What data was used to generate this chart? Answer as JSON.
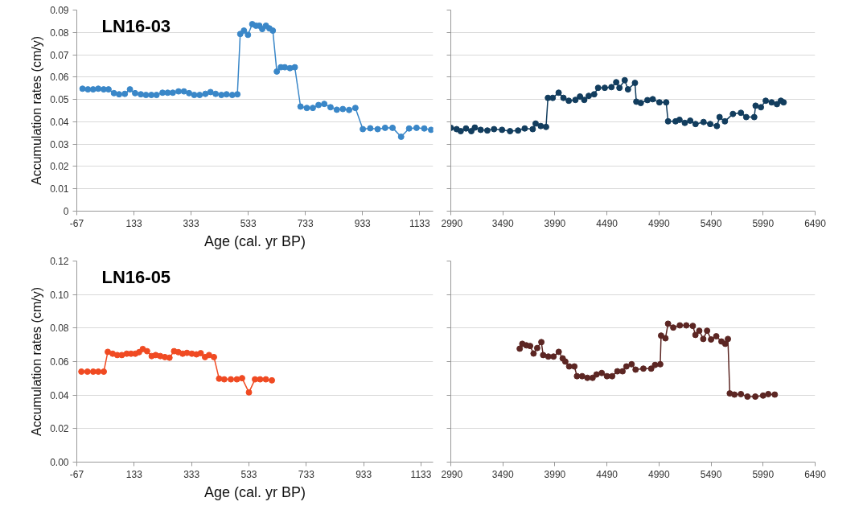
{
  "chart_data": [
    {
      "type": "line",
      "title": "LN16-03",
      "xlabel": "Age (cal. yr BP)",
      "ylabel": "Accumulation rates (cm/y)",
      "xlim": [
        -67,
        1180
      ],
      "xticks": [
        -67,
        133,
        333,
        533,
        733,
        933,
        1133
      ],
      "ylim": [
        0,
        0.09
      ],
      "yticks": [
        0,
        0.01,
        0.02,
        0.03,
        0.04,
        0.05,
        0.06,
        0.07,
        0.08,
        0.09
      ],
      "grid": "y",
      "marker": "circle",
      "line_style": "solid",
      "series": [
        {
          "color": "#3a87c8",
          "x": [
            -47,
            -28,
            -10,
            8,
            27,
            44,
            63,
            81,
            101,
            119,
            137,
            157,
            175,
            194,
            212,
            233,
            251,
            269,
            289,
            308,
            326,
            344,
            363,
            383,
            401,
            419,
            439,
            457,
            477,
            495,
            505,
            518,
            532,
            547,
            560,
            572,
            582,
            595,
            607,
            619,
            633,
            647,
            661,
            679,
            696,
            716,
            738,
            759,
            779,
            799,
            821,
            843,
            864,
            886,
            908,
            934,
            960,
            986,
            1012,
            1038,
            1068,
            1096,
            1122,
            1149,
            1173
          ],
          "values": [
            0.0548,
            0.0545,
            0.0545,
            0.0548,
            0.0545,
            0.0545,
            0.0528,
            0.0523,
            0.0525,
            0.0545,
            0.0528,
            0.0523,
            0.052,
            0.052,
            0.052,
            0.053,
            0.053,
            0.053,
            0.0536,
            0.0536,
            0.0528,
            0.052,
            0.052,
            0.0525,
            0.0533,
            0.0525,
            0.052,
            0.0523,
            0.052,
            0.0523,
            0.0793,
            0.0808,
            0.0789,
            0.0837,
            0.083,
            0.083,
            0.0815,
            0.083,
            0.0818,
            0.0808,
            0.0625,
            0.0644,
            0.0644,
            0.064,
            0.0644,
            0.0468,
            0.0462,
            0.0462,
            0.0475,
            0.048,
            0.0465,
            0.0454,
            0.0457,
            0.0453,
            0.0462,
            0.0367,
            0.0371,
            0.0367,
            0.0373,
            0.0373,
            0.0333,
            0.037,
            0.0373,
            0.037,
            0.0364
          ]
        }
      ]
    },
    {
      "type": "line",
      "xlim": [
        2990,
        6490
      ],
      "xticks": [
        2990,
        3490,
        3990,
        4490,
        4990,
        5490,
        5990,
        6490
      ],
      "ylim": [
        0,
        0.09
      ],
      "yticks": [
        0,
        0.01,
        0.02,
        0.03,
        0.04,
        0.05,
        0.06,
        0.07,
        0.08,
        0.09
      ],
      "tick_labels": "x",
      "grid": "y",
      "marker": "circle",
      "line_style": "solid",
      "series": [
        {
          "color": "#123d5e",
          "x": [
            2990,
            3046,
            3085,
            3136,
            3187,
            3221,
            3277,
            3341,
            3405,
            3482,
            3559,
            3636,
            3700,
            3777,
            3805,
            3854,
            3905,
            3923,
            3969,
            4026,
            4072,
            4123,
            4187,
            4231,
            4272,
            4315,
            4367,
            4405,
            4469,
            4533,
            4579,
            4610,
            4661,
            4692,
            4759,
            4772,
            4815,
            4879,
            4930,
            4994,
            5059,
            5077,
            5149,
            5187,
            5238,
            5290,
            5341,
            5418,
            5482,
            5546,
            5572,
            5623,
            5700,
            5777,
            5828,
            5905,
            5918,
            5969,
            6015,
            6072,
            6123,
            6161,
            6187
          ],
          "values": [
            0.0373,
            0.0367,
            0.0358,
            0.037,
            0.0358,
            0.0374,
            0.0364,
            0.0361,
            0.0367,
            0.0364,
            0.0358,
            0.0361,
            0.037,
            0.0367,
            0.0392,
            0.0381,
            0.0377,
            0.0507,
            0.0507,
            0.053,
            0.0507,
            0.0494,
            0.0498,
            0.0513,
            0.0498,
            0.0516,
            0.0523,
            0.0552,
            0.0552,
            0.0555,
            0.0577,
            0.0552,
            0.0586,
            0.0545,
            0.0574,
            0.049,
            0.0484,
            0.0497,
            0.0501,
            0.0487,
            0.0487,
            0.0402,
            0.0402,
            0.0409,
            0.0395,
            0.0405,
            0.039,
            0.0399,
            0.039,
            0.0381,
            0.0421,
            0.0402,
            0.0435,
            0.044,
            0.0421,
            0.0421,
            0.0472,
            0.0465,
            0.0494,
            0.0487,
            0.0479,
            0.0494,
            0.0487
          ]
        }
      ]
    },
    {
      "type": "line",
      "title": "LN16-05",
      "xlabel": "Age (cal. yr BP)",
      "ylabel": "Accumulation rates (cm/y)",
      "xlim": [
        -67,
        1175
      ],
      "xticks": [
        -67,
        133,
        333,
        533,
        733,
        933,
        1133
      ],
      "ylim": [
        0,
        0.12
      ],
      "yticks": [
        {
          "value": 0,
          "label": "0.00"
        },
        {
          "value": 0.02,
          "label": "0.02"
        },
        {
          "value": 0.04,
          "label": "0.04"
        },
        {
          "value": 0.06,
          "label": "0.06"
        },
        {
          "value": 0.08,
          "label": "0.08"
        },
        {
          "value": 0.1,
          "label": "0.10"
        },
        {
          "value": 0.12,
          "label": "0.12"
        }
      ],
      "grid": "y",
      "marker": "circle",
      "line_style": "solid",
      "series": [
        {
          "color": "#f04a22",
          "x": [
            -51,
            -30,
            -10,
            8,
            27,
            41,
            58,
            74,
            90,
            107,
            122,
            137,
            150,
            163,
            178,
            194,
            208,
            224,
            240,
            256,
            272,
            287,
            302,
            317,
            334,
            350,
            365,
            380,
            394,
            411,
            429,
            447,
            470,
            491,
            509,
            533,
            554,
            572,
            592,
            613
          ],
          "values": [
            0.054,
            0.054,
            0.054,
            0.054,
            0.054,
            0.0658,
            0.0647,
            0.0639,
            0.0639,
            0.0647,
            0.0647,
            0.0647,
            0.0656,
            0.0675,
            0.0662,
            0.0633,
            0.0639,
            0.0633,
            0.0627,
            0.0623,
            0.0662,
            0.0656,
            0.0647,
            0.0652,
            0.0647,
            0.0643,
            0.065,
            0.0627,
            0.0639,
            0.0627,
            0.0498,
            0.0494,
            0.0494,
            0.0494,
            0.0501,
            0.0416,
            0.0494,
            0.0494,
            0.0494,
            0.0488
          ]
        }
      ]
    },
    {
      "type": "line",
      "xlim": [
        2990,
        6490
      ],
      "xticks": [
        2990,
        3490,
        3990,
        4490,
        4990,
        5490,
        5990,
        6490
      ],
      "ylim": [
        0,
        0.12
      ],
      "yticks": [
        0,
        0.02,
        0.04,
        0.06,
        0.08,
        0.1,
        0.12
      ],
      "tick_labels": "x",
      "grid": "y",
      "marker": "circle",
      "line_style": "solid",
      "series": [
        {
          "color": "#5c2623",
          "x": [
            3652,
            3677,
            3715,
            3752,
            3785,
            3820,
            3860,
            3877,
            3927,
            3977,
            4027,
            4065,
            4090,
            4127,
            4177,
            4202,
            4252,
            4302,
            4352,
            4390,
            4440,
            4490,
            4540,
            4590,
            4640,
            4677,
            4727,
            4765,
            4840,
            4915,
            4952,
            5002,
            5010,
            5052,
            5077,
            5127,
            5190,
            5252,
            5315,
            5340,
            5377,
            5415,
            5452,
            5490,
            5540,
            5590,
            5627,
            5652,
            5670,
            5715,
            5777,
            5840,
            5915,
            5990,
            6040,
            6102
          ],
          "values": [
            0.0677,
            0.0706,
            0.0697,
            0.0693,
            0.0648,
            0.0681,
            0.0716,
            0.0639,
            0.063,
            0.063,
            0.0658,
            0.0619,
            0.06,
            0.0571,
            0.0571,
            0.0513,
            0.0513,
            0.0503,
            0.0503,
            0.0523,
            0.0532,
            0.0513,
            0.0513,
            0.0542,
            0.0542,
            0.0571,
            0.0584,
            0.0552,
            0.0558,
            0.0558,
            0.058,
            0.0584,
            0.0755,
            0.0739,
            0.0826,
            0.0803,
            0.0816,
            0.0816,
            0.0813,
            0.0759,
            0.0784,
            0.0735,
            0.0784,
            0.0732,
            0.0751,
            0.072,
            0.0706,
            0.0735,
            0.041,
            0.0403,
            0.0406,
            0.0391,
            0.0391,
            0.0397,
            0.0406,
            0.0403
          ]
        }
      ]
    }
  ]
}
